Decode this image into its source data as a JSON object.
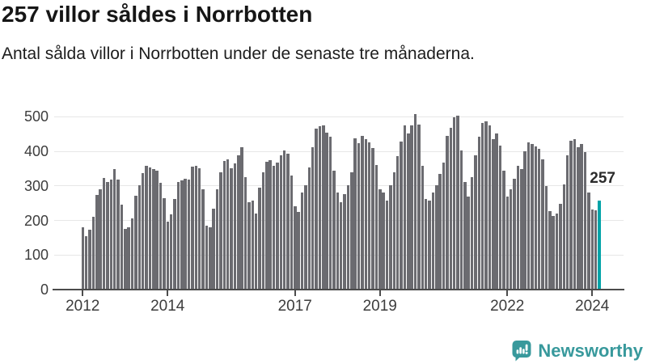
{
  "header": {
    "title": "257 villor såldes i Norrbotten",
    "subtitle": "Antal sålda villor i Norrbotten under de senaste tre månaderna."
  },
  "chart_data": {
    "type": "bar",
    "title": "257 villor såldes i Norrbotten",
    "subtitle": "Antal sålda villor i Norrbotten under de senaste tre månaderna.",
    "x_start": "2012-01",
    "x_end": "2024-03",
    "x_unit": "month",
    "ylim": [
      0,
      520
    ],
    "y_ticks": [
      0,
      100,
      200,
      300,
      400,
      500
    ],
    "grid": "horizontal",
    "x_ticks": [
      {
        "label": "2012",
        "month_index": 0
      },
      {
        "label": "2014",
        "month_index": 24
      },
      {
        "label": "2017",
        "month_index": 60
      },
      {
        "label": "2019",
        "month_index": 84
      },
      {
        "label": "2022",
        "month_index": 120
      },
      {
        "label": "2024",
        "month_index": 144
      }
    ],
    "values": [
      180,
      155,
      172,
      210,
      274,
      291,
      324,
      312,
      317,
      348,
      317,
      246,
      176,
      181,
      207,
      272,
      301,
      337,
      357,
      354,
      348,
      343,
      308,
      264,
      196,
      218,
      262,
      311,
      315,
      320,
      317,
      355,
      357,
      352,
      291,
      186,
      181,
      233,
      291,
      340,
      373,
      377,
      351,
      365,
      388,
      412,
      326,
      253,
      258,
      221,
      295,
      340,
      369,
      374,
      357,
      367,
      388,
      402,
      392,
      330,
      242,
      225,
      280,
      301,
      354,
      412,
      466,
      472,
      474,
      455,
      441,
      343,
      280,
      253,
      276,
      301,
      340,
      437,
      423,
      444,
      434,
      426,
      410,
      361,
      291,
      281,
      258,
      301,
      340,
      387,
      429,
      474,
      452,
      476,
      507,
      478,
      359,
      262,
      257,
      280,
      301,
      334,
      367,
      444,
      468,
      499,
      504,
      402,
      312,
      268,
      326,
      388,
      443,
      483,
      486,
      476,
      435,
      451,
      416,
      343,
      268,
      291,
      320,
      357,
      348,
      400,
      426,
      420,
      413,
      408,
      377,
      299,
      227,
      214,
      219,
      247,
      303,
      388,
      431,
      434,
      412,
      420,
      398,
      280,
      232,
      230,
      257
    ],
    "highlight": {
      "index": 146,
      "value": 257,
      "label": "257",
      "color": "#00a3a8"
    },
    "bar_color": "#6b6b70"
  },
  "colors": {
    "bar_gray": "#6b6b70",
    "highlight_teal": "#00a3a8",
    "brand_teal": "#38999c",
    "gridline": "#e7e7e7",
    "axis": "#4c4c4c",
    "axis_text": "#3d3d3d"
  },
  "footer": {
    "brand": "Newsworthy",
    "logo_icon": "newsworthy-speech-bubble-bar-chart-icon"
  }
}
